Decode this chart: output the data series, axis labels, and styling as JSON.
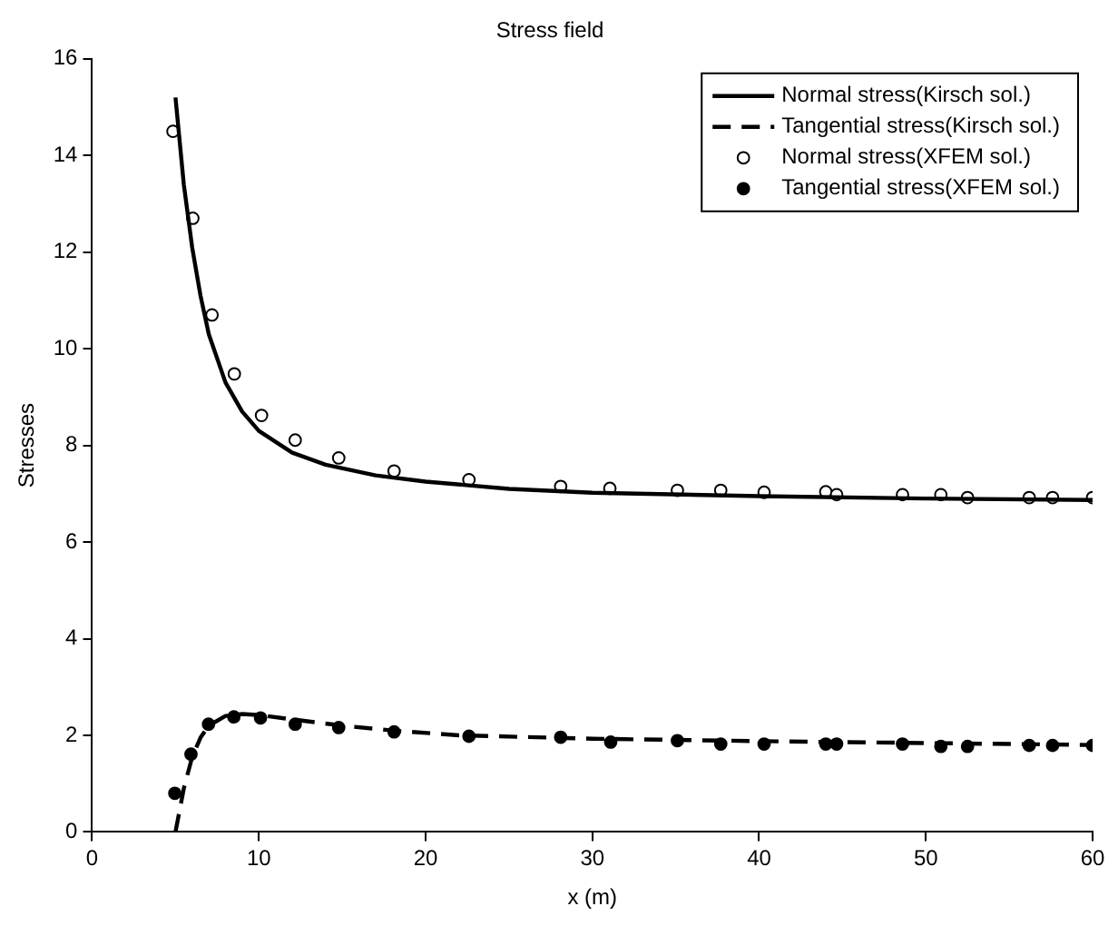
{
  "chart_data": {
    "type": "line",
    "title": "Stress field",
    "xlabel": "x (m)",
    "ylabel": "Stresses",
    "xlim": [
      0,
      60
    ],
    "xticks": [
      0,
      10,
      20,
      30,
      40,
      50,
      60
    ],
    "ylim": [
      0,
      16
    ],
    "yticks": [
      0,
      2,
      4,
      6,
      8,
      10,
      12,
      14,
      16
    ],
    "legend": "top right",
    "series": [
      {
        "name": "Normal stress(Kirsch sol.)",
        "color": "#000000",
        "line_style": "solid",
        "marker": "none",
        "x": [
          5,
          5.5,
          6,
          6.5,
          7,
          8,
          9,
          10,
          12,
          14,
          17,
          20,
          25,
          30,
          40,
          50,
          60
        ],
        "values": [
          15.2,
          13.4,
          12.1,
          11.1,
          10.3,
          9.3,
          8.7,
          8.3,
          7.85,
          7.6,
          7.38,
          7.25,
          7.1,
          7.02,
          6.95,
          6.9,
          6.87
        ]
      },
      {
        "name": "Tangential stress(Kirsch sol.)",
        "color": "#000000",
        "line_style": "dashed",
        "marker": "none",
        "x": [
          5,
          5.5,
          6,
          6.5,
          7,
          8,
          9,
          10,
          12,
          15,
          18,
          22,
          30,
          40,
          50,
          60
        ],
        "values": [
          0,
          0.9,
          1.55,
          1.95,
          2.2,
          2.4,
          2.44,
          2.42,
          2.33,
          2.2,
          2.1,
          2.0,
          1.93,
          1.88,
          1.84,
          1.8
        ]
      },
      {
        "name": "Normal stress(XFEM sol.)",
        "type": "scatter",
        "color": "#000000",
        "marker": "circle",
        "x": [
          4.85,
          6.04,
          7.19,
          8.53,
          10.16,
          12.18,
          14.79,
          18.11,
          22.6,
          28.1,
          31.05,
          35.1,
          37.7,
          40.3,
          44.0,
          44.65,
          48.6,
          50.9,
          52.5,
          56.2,
          57.6,
          60
        ],
        "values": [
          14.5,
          12.7,
          10.7,
          9.48,
          8.62,
          8.11,
          7.74,
          7.47,
          7.29,
          7.15,
          7.11,
          7.07,
          7.07,
          7.03,
          7.04,
          6.98,
          6.98,
          6.98,
          6.92,
          6.92,
          6.92,
          6.92
        ]
      },
      {
        "name": "Tangential stress(XFEM sol.)",
        "type": "scatter",
        "color": "#000000",
        "marker": "filled-circle",
        "x": [
          4.96,
          5.93,
          6.98,
          8.5,
          10.1,
          12.18,
          14.79,
          18.11,
          22.6,
          28.1,
          31.1,
          35.1,
          37.7,
          40.3,
          44.0,
          44.65,
          48.6,
          50.9,
          52.5,
          56.2,
          57.6,
          60
        ],
        "values": [
          0.8,
          1.61,
          2.23,
          2.38,
          2.36,
          2.23,
          2.16,
          2.07,
          1.98,
          1.96,
          1.86,
          1.89,
          1.82,
          1.82,
          1.82,
          1.82,
          1.82,
          1.77,
          1.77,
          1.79,
          1.79,
          1.79
        ]
      }
    ]
  }
}
